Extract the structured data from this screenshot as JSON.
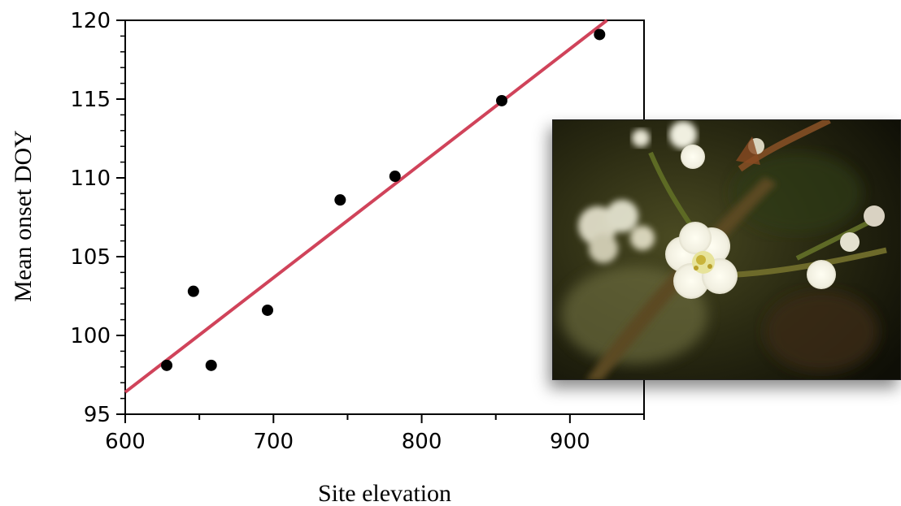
{
  "chart_data": {
    "type": "scatter",
    "xlabel": "Site elevation",
    "ylabel": "Mean onset DOY",
    "xlim": [
      600,
      950
    ],
    "ylim": [
      95,
      120
    ],
    "x_ticks": [
      600,
      700,
      800,
      900
    ],
    "y_ticks": [
      95,
      100,
      105,
      110,
      115,
      120
    ],
    "grid": false,
    "points": [
      {
        "x": 628,
        "y": 98.1
      },
      {
        "x": 646,
        "y": 102.8
      },
      {
        "x": 658,
        "y": 98.1
      },
      {
        "x": 696,
        "y": 101.6
      },
      {
        "x": 745,
        "y": 108.6
      },
      {
        "x": 782,
        "y": 110.1
      },
      {
        "x": 854,
        "y": 114.9
      },
      {
        "x": 920,
        "y": 119.1
      }
    ],
    "trendline": {
      "x": [
        600,
        925
      ],
      "y": [
        96.4,
        120.0
      ],
      "color": "#d0435a"
    },
    "point_color": "#000000"
  },
  "inset_photo": {
    "icon": "white-blossom-photo"
  }
}
